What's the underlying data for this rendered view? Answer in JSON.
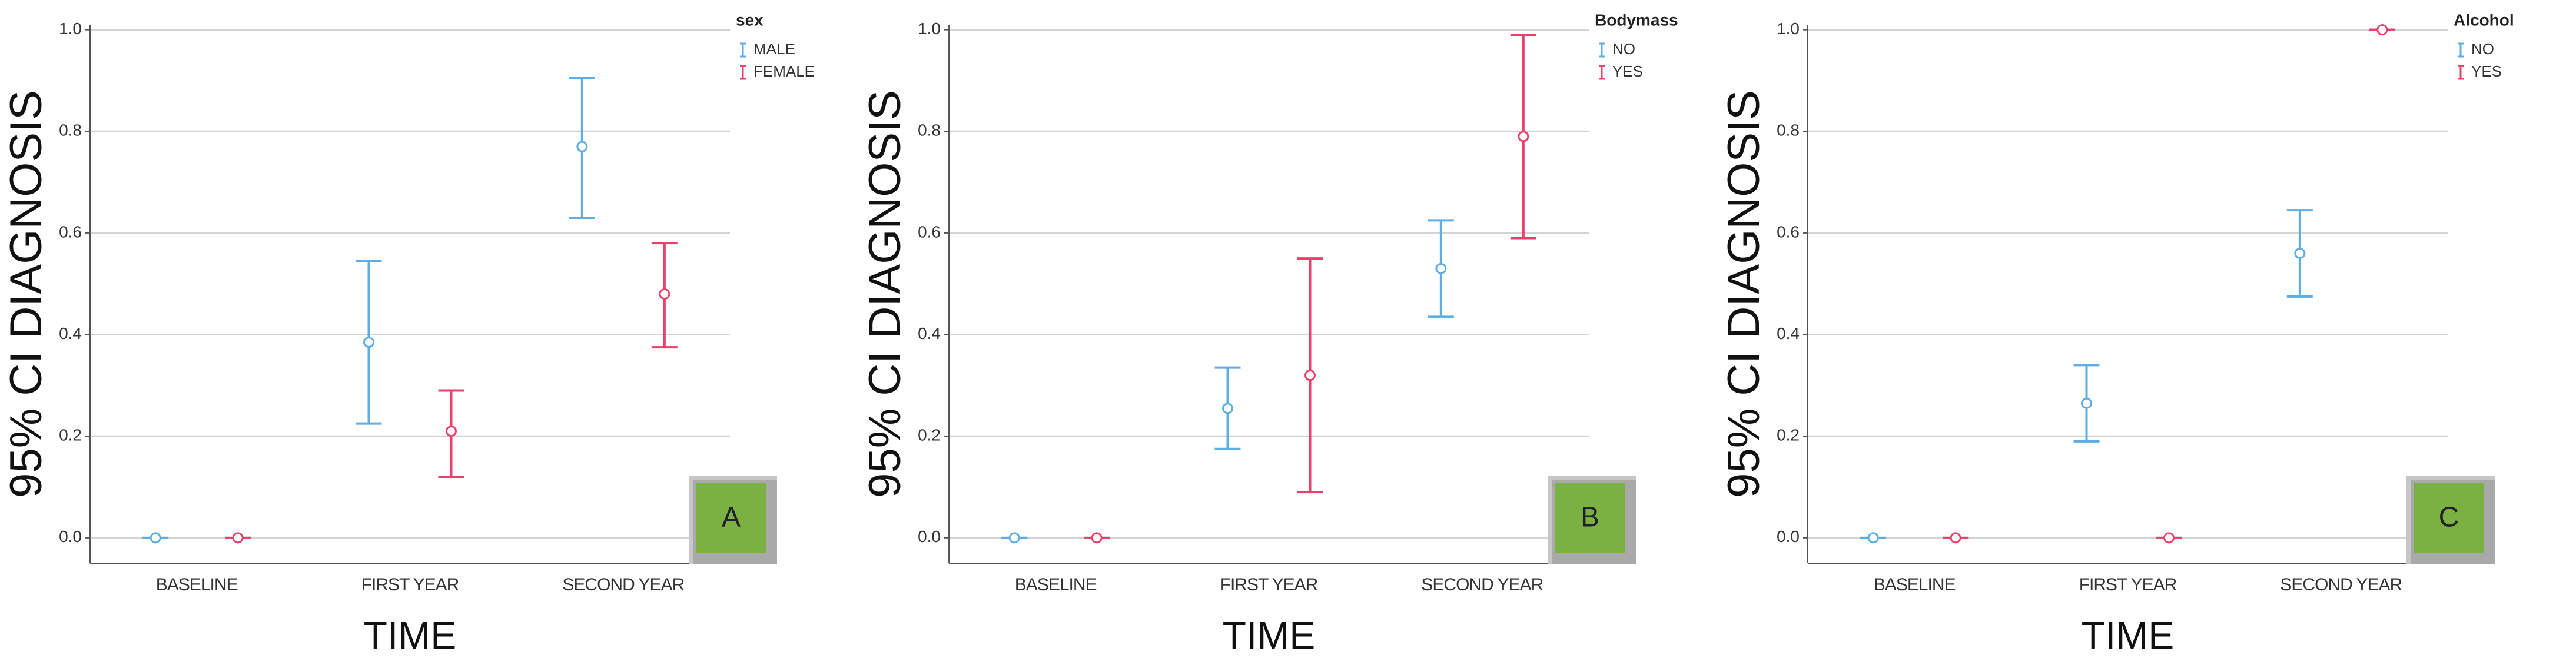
{
  "chart_data": [
    {
      "type": "errorbar",
      "ylabel": "95% CI DIAGNOSIS",
      "xlabel": "TIME",
      "legend_title": "sex",
      "panel_label": "A",
      "categories": [
        "BASELINE",
        "FIRST YEAR",
        "SECOND YEAR"
      ],
      "series": [
        {
          "name": "MALE",
          "color": "#5eaee3",
          "values": [
            0,
            0.385,
            0.77
          ],
          "lower": [
            0,
            0.225,
            0.63
          ],
          "upper": [
            0,
            0.545,
            0.905
          ]
        },
        {
          "name": "FEMALE",
          "color": "#e9416a",
          "values": [
            0,
            0.21,
            0.48
          ],
          "lower": [
            0,
            0.12,
            0.375
          ],
          "upper": [
            0,
            0.29,
            0.58
          ]
        }
      ],
      "ylim": [
        -0.05,
        1.01
      ],
      "yticks": [
        {
          "value": 0,
          "label": "0.0"
        },
        {
          "value": 0.2,
          "label": "0.2"
        },
        {
          "value": 0.4,
          "label": "0.4"
        },
        {
          "value": 0.6,
          "label": "0.6"
        },
        {
          "value": 0.8,
          "label": "0.8"
        },
        {
          "value": 1,
          "label": "1.0"
        }
      ],
      "grid": true
    },
    {
      "type": "errorbar",
      "ylabel": "95% CI DIAGNOSIS",
      "xlabel": "TIME",
      "legend_title": "Bodymass",
      "panel_label": "B",
      "categories": [
        "BASELINE",
        "FIRST YEAR",
        "SECOND YEAR"
      ],
      "series": [
        {
          "name": "NO",
          "color": "#5eaee3",
          "values": [
            0,
            0.255,
            0.53
          ],
          "lower": [
            0,
            0.175,
            0.435
          ],
          "upper": [
            0,
            0.335,
            0.625
          ]
        },
        {
          "name": "YES",
          "color": "#e9416a",
          "values": [
            0,
            0.32,
            0.79
          ],
          "lower": [
            0,
            0.09,
            0.59
          ],
          "upper": [
            0,
            0.55,
            0.99
          ]
        }
      ],
      "ylim": [
        -0.05,
        1.01
      ],
      "yticks": [
        {
          "value": 0,
          "label": "0.0"
        },
        {
          "value": 0.2,
          "label": "0.2"
        },
        {
          "value": 0.4,
          "label": "0.4"
        },
        {
          "value": 0.6,
          "label": "0.6"
        },
        {
          "value": 0.8,
          "label": "0.8"
        },
        {
          "value": 1,
          "label": "1.0"
        }
      ],
      "grid": true
    },
    {
      "type": "errorbar",
      "ylabel": "95% CI DIAGNOSIS",
      "xlabel": "TIME",
      "legend_title": "Alcohol",
      "panel_label": "C",
      "categories": [
        "BASELINE",
        "FIRST YEAR",
        "SECOND YEAR"
      ],
      "series": [
        {
          "name": "NO",
          "color": "#5eaee3",
          "values": [
            0,
            0.265,
            0.56
          ],
          "lower": [
            0,
            0.19,
            0.475
          ],
          "upper": [
            0,
            0.34,
            0.645
          ]
        },
        {
          "name": "YES",
          "color": "#e9416a",
          "values": [
            0,
            0,
            1
          ],
          "lower": [
            0,
            0,
            1
          ],
          "upper": [
            0,
            0,
            1
          ]
        }
      ],
      "ylim": [
        -0.05,
        1.01
      ],
      "yticks": [
        {
          "value": 0,
          "label": "0.0"
        },
        {
          "value": 0.2,
          "label": "0.2"
        },
        {
          "value": 0.4,
          "label": "0.4"
        },
        {
          "value": 0.6,
          "label": "0.6"
        },
        {
          "value": 0.8,
          "label": "0.8"
        },
        {
          "value": 1,
          "label": "1.0"
        }
      ],
      "grid": true
    }
  ]
}
